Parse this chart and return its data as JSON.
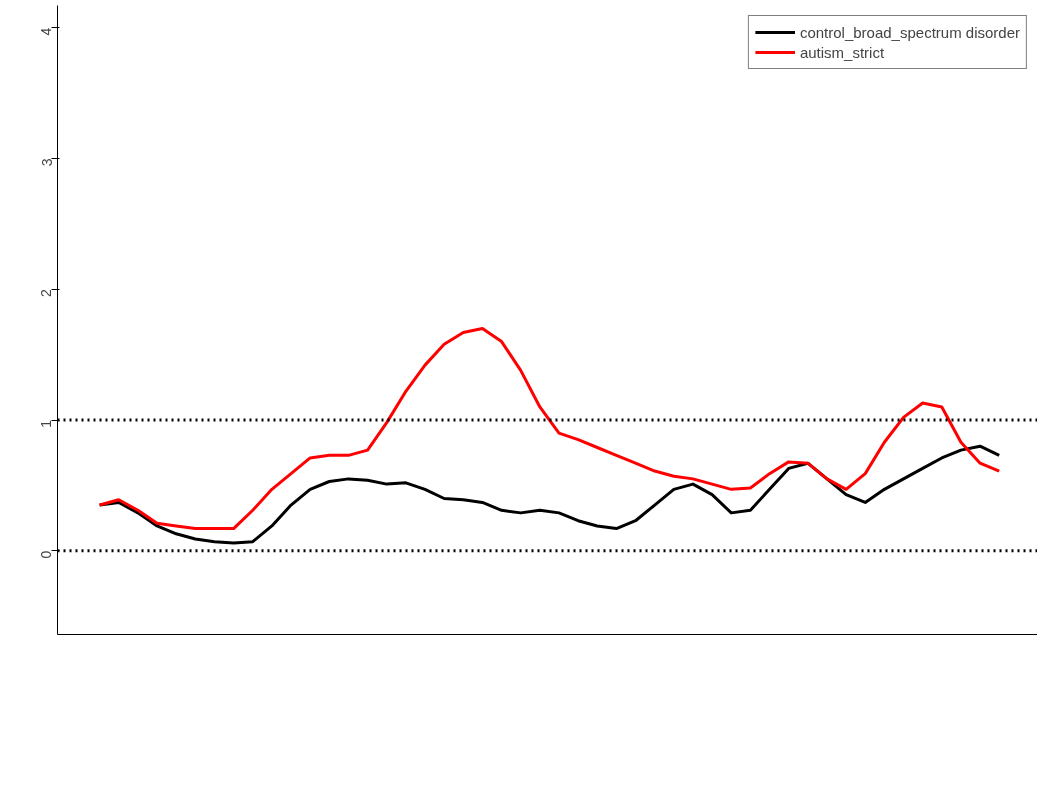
{
  "chart_data": {
    "type": "line",
    "categories": [
      null,
      null,
      null,
      null,
      null,
      null,
      null,
      null,
      null,
      null,
      null,
      null,
      null,
      null,
      null,
      null,
      null,
      null,
      null,
      null,
      null,
      null,
      null,
      null,
      null,
      null,
      null,
      null,
      null,
      null,
      null,
      null,
      null,
      null,
      null,
      null,
      null,
      null,
      null,
      null,
      null,
      null,
      null,
      null,
      null,
      null,
      null,
      null
    ],
    "series": [
      {
        "name": "control_broad_spectrum disorder",
        "color": "#000000",
        "values": [
          0.35,
          0.37,
          0.29,
          0.19,
          0.13,
          0.09,
          0.07,
          0.06,
          0.07,
          0.19,
          0.35,
          0.47,
          0.53,
          0.55,
          0.54,
          0.51,
          0.52,
          0.47,
          0.4,
          0.39,
          0.37,
          0.31,
          0.29,
          0.31,
          0.29,
          0.23,
          0.19,
          0.17,
          0.23,
          0.35,
          0.47,
          0.51,
          0.43,
          0.29,
          0.31,
          0.47,
          0.63,
          0.67,
          0.55,
          0.43,
          0.37,
          0.47,
          0.55,
          0.63,
          0.71,
          0.77,
          0.8,
          0.73
        ]
      },
      {
        "name": "autism_strict",
        "color": "#ff0000",
        "values": [
          0.35,
          0.39,
          0.31,
          0.21,
          0.19,
          0.17,
          0.17,
          0.17,
          0.31,
          0.47,
          0.59,
          0.71,
          0.73,
          0.73,
          0.77,
          0.98,
          1.22,
          1.42,
          1.58,
          1.67,
          1.7,
          1.6,
          1.38,
          1.1,
          0.9,
          0.85,
          0.79,
          0.73,
          0.67,
          0.61,
          0.57,
          0.55,
          0.51,
          0.47,
          0.48,
          0.59,
          0.68,
          0.67,
          0.55,
          0.47,
          0.59,
          0.83,
          1.02,
          1.13,
          1.1,
          0.83,
          0.67,
          0.61
        ]
      }
    ],
    "ylim": [
      -0.64,
      4.17
    ],
    "yticks": [
      0,
      1,
      2,
      3,
      4
    ],
    "tick_labels": "y",
    "grid": false,
    "legend": "top right",
    "marker": "none",
    "line_style": "solid",
    "ref_lines": [
      {
        "axis": "y",
        "value": 0,
        "color": "#000000",
        "line_style": "dotted"
      },
      {
        "axis": "y",
        "value": 1,
        "color": "#000000",
        "line_style": "dotted"
      }
    ]
  }
}
